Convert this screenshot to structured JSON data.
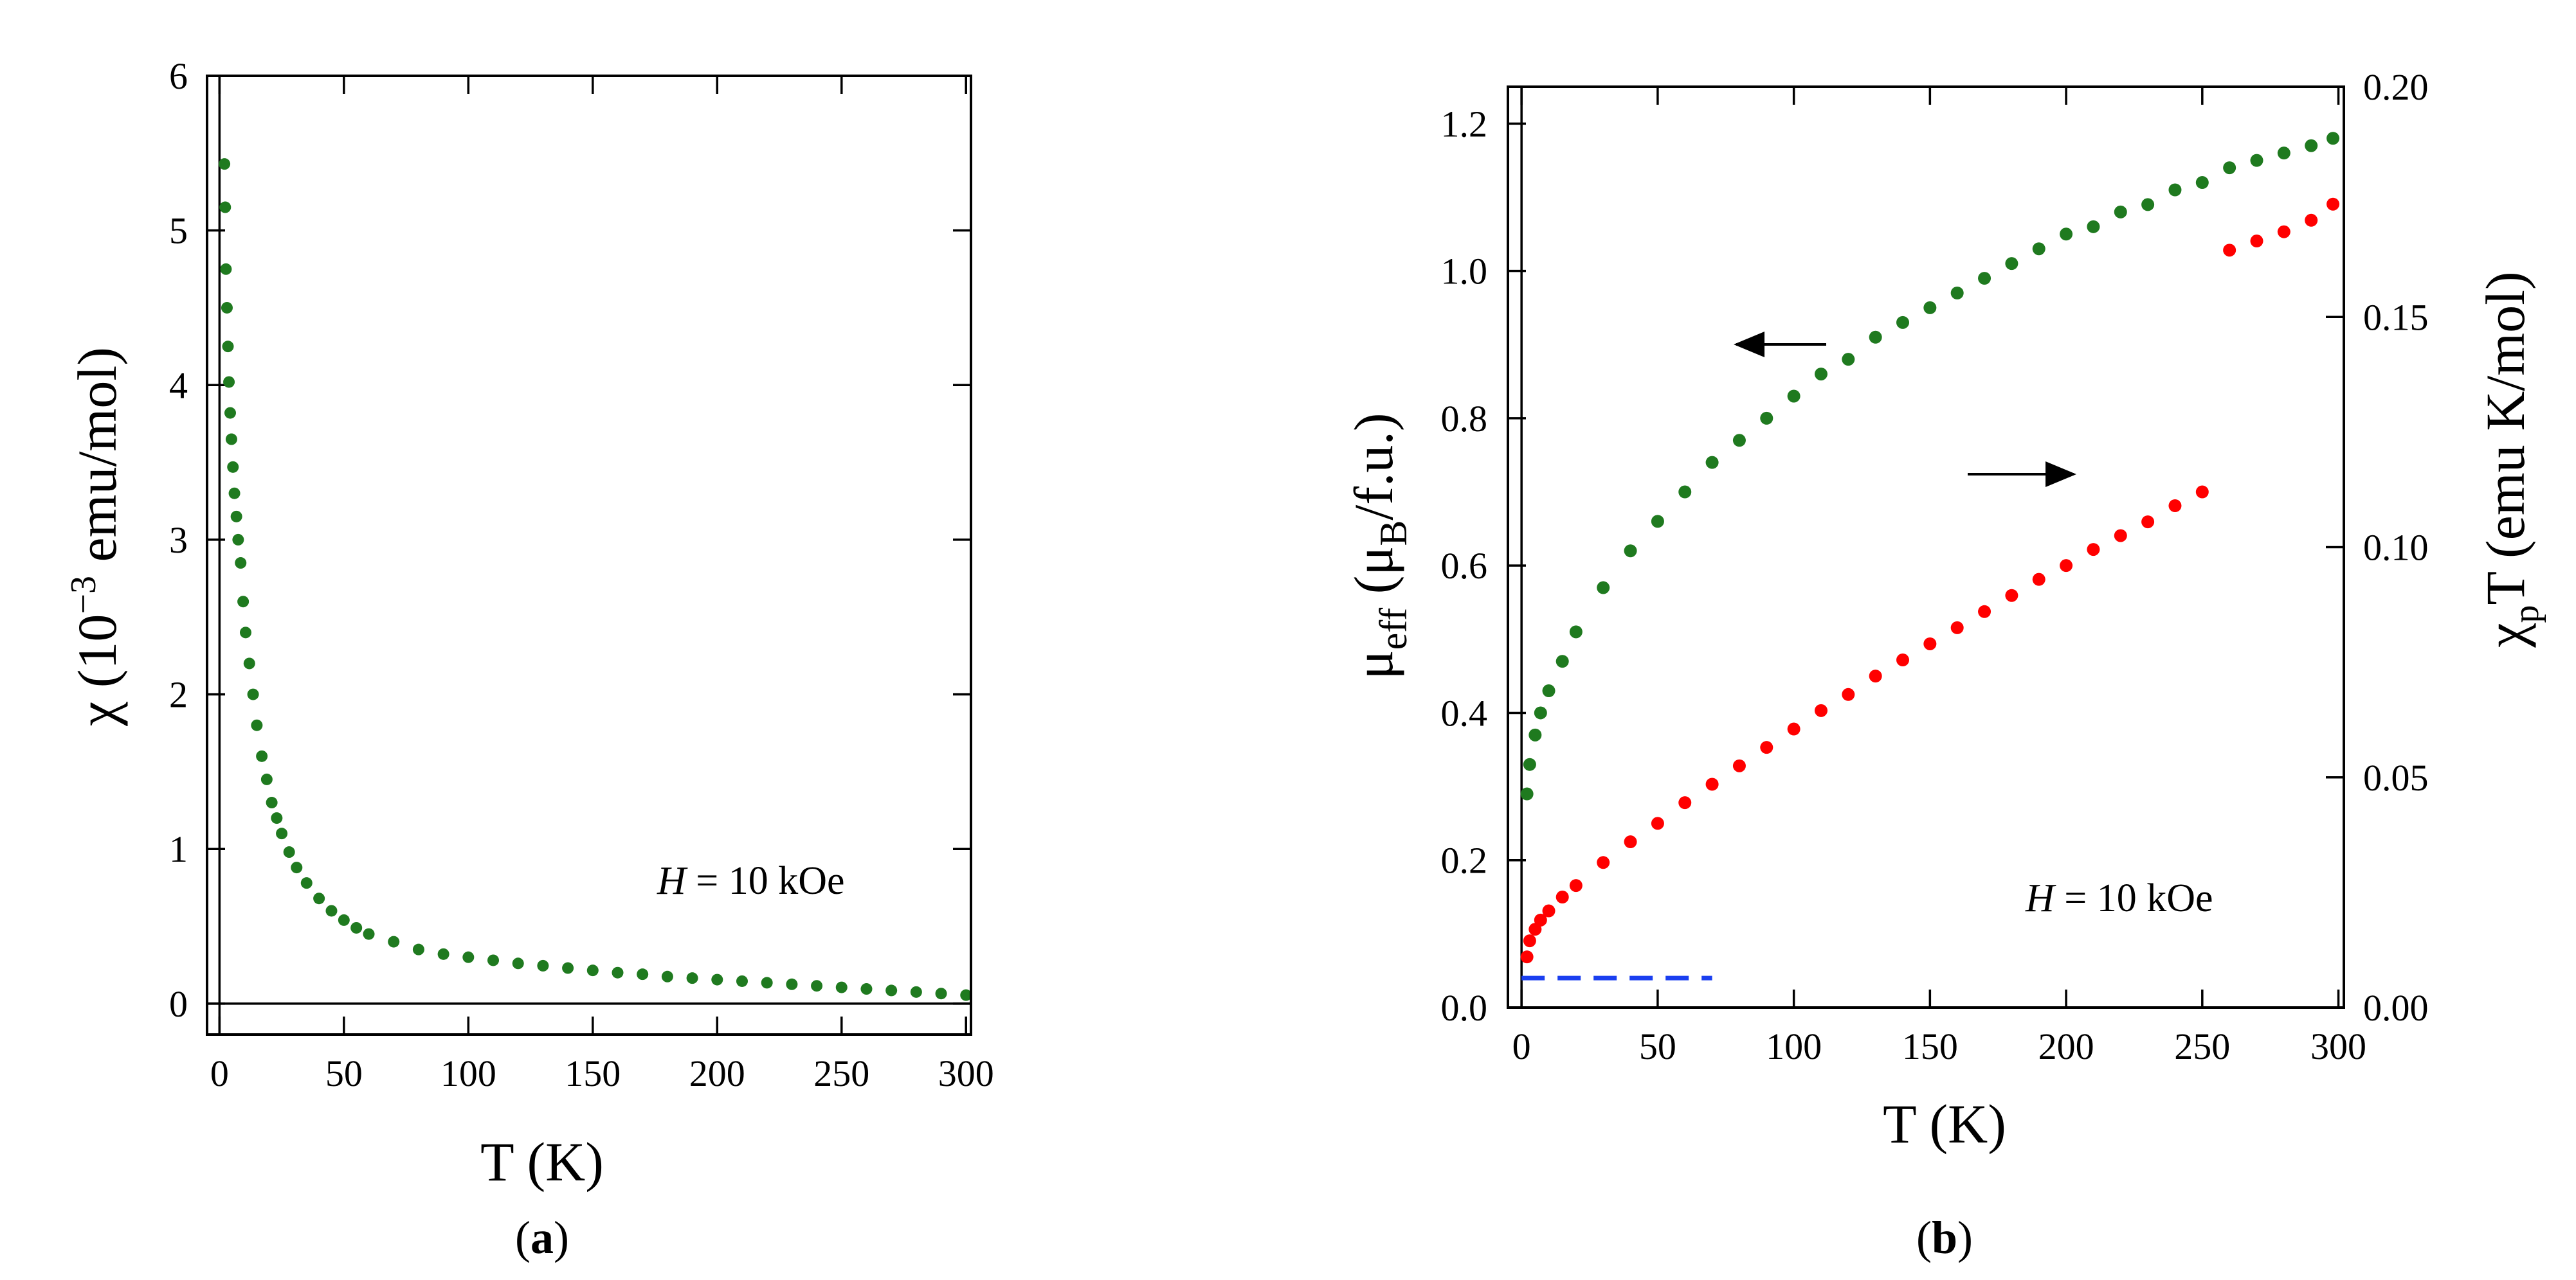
{
  "chart_data": [
    {
      "type": "scatter",
      "panel_label": {
        "open": "(",
        "letter": "a",
        "close": ")"
      },
      "xlabel": "T  (K)",
      "ylabel": {
        "symbol": "χ",
        "open": " (10",
        "exp": "−3",
        "rest": " emu/mol)"
      },
      "xlim": [
        -5,
        302
      ],
      "ylim": [
        -0.2,
        6
      ],
      "xticks": [
        0,
        50,
        100,
        150,
        200,
        250,
        300
      ],
      "yticks": [
        0,
        1,
        2,
        3,
        4,
        5,
        6
      ],
      "annotation": {
        "var": "H",
        "rest": " = 10 kOe"
      },
      "series": [
        {
          "name": "chi",
          "color": "#1f7a1f",
          "x": [
            2.0,
            2.3,
            2.6,
            3.0,
            3.4,
            3.8,
            4.3,
            4.8,
            5.4,
            6.0,
            6.8,
            7.5,
            8.5,
            9.5,
            10.5,
            12,
            13.5,
            15,
            17,
            19,
            21,
            23,
            25,
            28,
            31,
            35,
            40,
            45,
            50,
            55,
            60,
            70,
            80,
            90,
            100,
            110,
            120,
            130,
            140,
            150,
            160,
            170,
            180,
            190,
            200,
            210,
            220,
            230,
            240,
            250,
            260,
            270,
            280,
            290,
            300
          ],
          "y": [
            5.43,
            5.15,
            4.75,
            4.5,
            4.25,
            4.02,
            3.82,
            3.65,
            3.47,
            3.3,
            3.15,
            3.0,
            2.85,
            2.6,
            2.4,
            2.2,
            2.0,
            1.8,
            1.6,
            1.45,
            1.3,
            1.2,
            1.1,
            0.98,
            0.88,
            0.78,
            0.68,
            0.6,
            0.54,
            0.49,
            0.45,
            0.4,
            0.35,
            0.32,
            0.3,
            0.28,
            0.26,
            0.245,
            0.23,
            0.215,
            0.2,
            0.19,
            0.175,
            0.165,
            0.155,
            0.145,
            0.135,
            0.125,
            0.115,
            0.105,
            0.095,
            0.085,
            0.075,
            0.065,
            0.055
          ]
        }
      ]
    },
    {
      "type": "scatter",
      "panel_label": {
        "open": "(",
        "letter": "b",
        "close": ")"
      },
      "xlabel": "T (K)",
      "ylabel_left": {
        "symbol": "μ",
        "sub": "eff",
        "open": "  (μ",
        "sub2": "B",
        "rest": "/f.u.)"
      },
      "ylabel_right": {
        "symbol": "χ",
        "sub": "p",
        "rest": "T (emu K/mol)"
      },
      "xlim": [
        -5,
        302
      ],
      "ylim_left": [
        0,
        1.25
      ],
      "ylim_right": [
        0,
        0.2
      ],
      "xticks": [
        0,
        50,
        100,
        150,
        200,
        250,
        300
      ],
      "yticks_left": [
        "0.0",
        "0.2",
        "0.4",
        "0.6",
        "0.8",
        "1.0",
        "1.2"
      ],
      "yticks_right": [
        "0.00",
        "0.05",
        "0.10",
        "0.15",
        "0.20"
      ],
      "annotation": {
        "var": "H",
        "rest": " = 10 kOe"
      },
      "series": [
        {
          "name": "mu_eff",
          "axis": "left",
          "color": "#1f7a1f",
          "x": [
            2,
            3,
            5,
            7,
            10,
            15,
            20,
            30,
            40,
            50,
            60,
            70,
            80,
            90,
            100,
            110,
            120,
            130,
            140,
            150,
            160,
            170,
            180,
            190,
            200,
            210,
            220,
            230,
            240,
            250,
            260,
            270,
            280,
            290,
            298
          ],
          "y": [
            0.29,
            0.33,
            0.37,
            0.4,
            0.43,
            0.47,
            0.51,
            0.57,
            0.62,
            0.66,
            0.7,
            0.74,
            0.77,
            0.8,
            0.83,
            0.86,
            0.88,
            0.91,
            0.93,
            0.95,
            0.97,
            0.99,
            1.01,
            1.03,
            1.05,
            1.06,
            1.08,
            1.09,
            1.11,
            1.12,
            1.14,
            1.15,
            1.16,
            1.17,
            1.18
          ]
        },
        {
          "name": "chi_p_T",
          "axis": "right",
          "color": "#ff0000",
          "x": [
            2,
            3,
            5,
            7,
            10,
            15,
            20,
            30,
            40,
            50,
            60,
            70,
            80,
            90,
            100,
            110,
            120,
            130,
            140,
            150,
            160,
            170,
            180,
            190,
            200,
            210,
            220,
            230,
            240,
            250,
            260,
            270,
            280,
            290,
            298
          ],
          "y": [
            0.011,
            0.0145,
            0.017,
            0.019,
            0.021,
            0.024,
            0.0265,
            0.0315,
            0.036,
            0.04,
            0.0445,
            0.0485,
            0.0525,
            0.0565,
            0.0605,
            0.0645,
            0.068,
            0.072,
            0.0755,
            0.079,
            0.0825,
            0.086,
            0.0895,
            0.093,
            0.096,
            0.0995,
            0.1025,
            0.1055,
            0.109,
            0.112,
            0.1645,
            0.1665,
            0.1685,
            0.171,
            0.1745
          ]
        }
      ],
      "reference_line": {
        "style": "dashed",
        "color": "#1a3ff0",
        "axis": "left",
        "y": 0.04,
        "x": [
          0,
          70
        ]
      },
      "arrows": [
        {
          "points_to": "left-axis",
          "near_series": "mu_eff"
        },
        {
          "points_to": "right-axis",
          "near_series": "chi_p_T"
        }
      ]
    }
  ]
}
